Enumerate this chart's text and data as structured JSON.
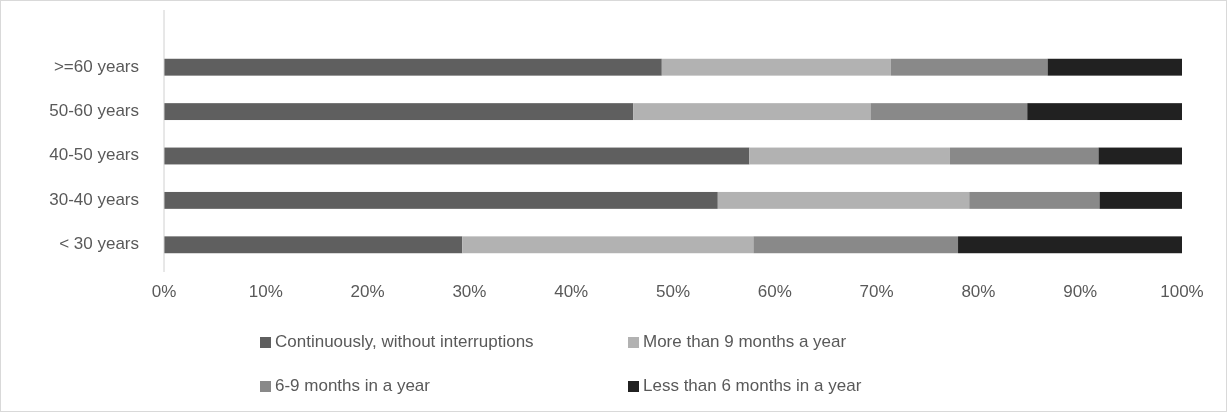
{
  "chart_data": {
    "type": "bar",
    "orientation": "horizontal",
    "stacked": true,
    "categories": [
      ">=60 years",
      "50-60 years",
      "40-50 years",
      "30-40 years",
      "< 30 years"
    ],
    "series": [
      {
        "name": "Continuously, without interruptions",
        "color": "#5f5f5f",
        "values": [
          48.9,
          46.1,
          57.5,
          54.4,
          29.3
        ]
      },
      {
        "name": "More than 9 months a year",
        "color": "#b2b2b2",
        "values": [
          22.5,
          23.3,
          19.7,
          24.7,
          28.6
        ]
      },
      {
        "name": "6-9 months in a year",
        "color": "#898989",
        "values": [
          15.4,
          15.4,
          14.6,
          12.8,
          20.1
        ]
      },
      {
        "name": "Less than 6 months in a year",
        "color": "#212121",
        "values": [
          13.2,
          15.2,
          8.2,
          8.1,
          22.0
        ]
      }
    ],
    "xlim": [
      0,
      100
    ],
    "xticks": [
      {
        "value": 0,
        "label": "0%"
      },
      {
        "value": 10,
        "label": "10%"
      },
      {
        "value": 20,
        "label": "20%"
      },
      {
        "value": 30,
        "label": "30%"
      },
      {
        "value": 40,
        "label": "40%"
      },
      {
        "value": 50,
        "label": "50%"
      },
      {
        "value": 60,
        "label": "60%"
      },
      {
        "value": 70,
        "label": "70%"
      },
      {
        "value": 80,
        "label": "80%"
      },
      {
        "value": 90,
        "label": "90%"
      },
      {
        "value": 100,
        "label": "100%"
      }
    ],
    "grid": false,
    "legend": "bottom"
  }
}
